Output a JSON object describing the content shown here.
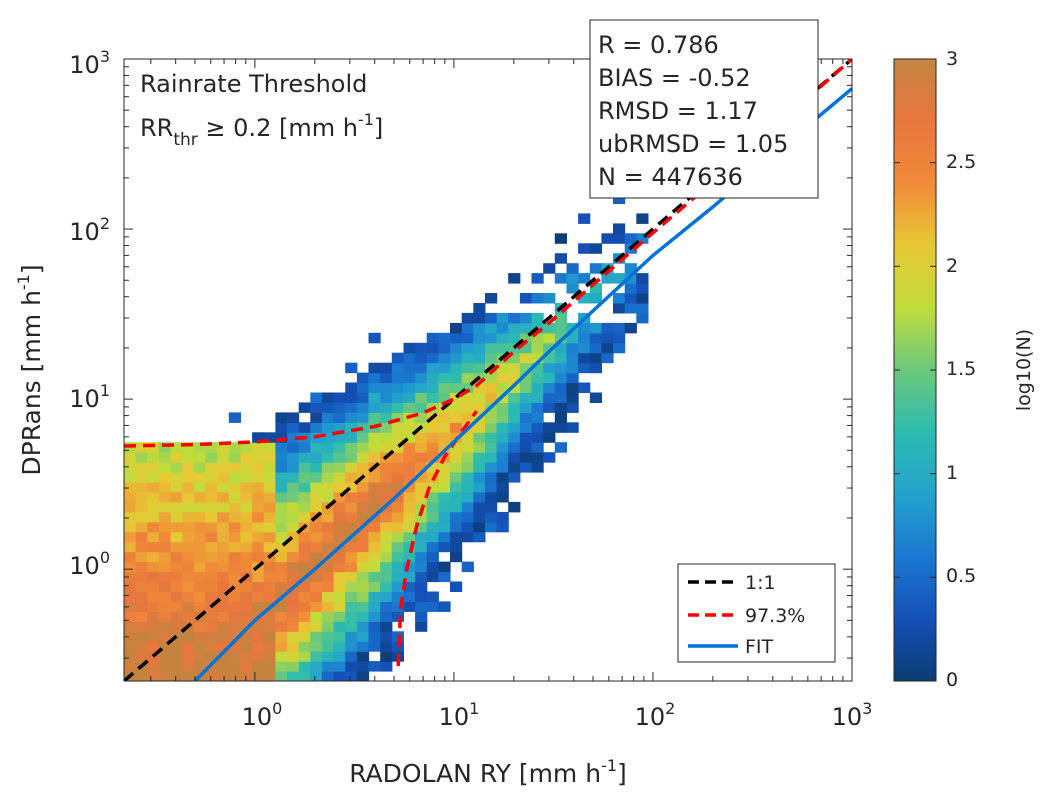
{
  "chart_data": {
    "type": "heatmap",
    "xlabel": "RADOLAN RY [mm h",
    "ylabel": "DPRans [mm h",
    "unit_exponent": "-1",
    "x_scale": "log",
    "y_scale": "log",
    "xlim": [
      0.22,
      1000
    ],
    "ylim": [
      0.22,
      1000
    ],
    "x_ticks": [
      {
        "base": "10",
        "exp": "0",
        "value": 1
      },
      {
        "base": "10",
        "exp": "1",
        "value": 10
      },
      {
        "base": "10",
        "exp": "2",
        "value": 100
      },
      {
        "base": "10",
        "exp": "3",
        "value": 1000
      }
    ],
    "y_ticks": [
      {
        "base": "10",
        "exp": "0",
        "value": 1
      },
      {
        "base": "10",
        "exp": "1",
        "value": 10
      },
      {
        "base": "10",
        "exp": "2",
        "value": 100
      },
      {
        "base": "10",
        "exp": "3",
        "value": 1000
      }
    ],
    "annotation": {
      "line1": "Rainrate Threshold",
      "line2_main": "RR",
      "line2_sub": "thr",
      "line2_rest": " ≥ 0.2 [mm h",
      "line2_sup": "-1",
      "line2_end": "]"
    },
    "stats": [
      "R = 0.786",
      "BIAS = -0.52",
      "RMSD = 1.17",
      "ubRMSD = 1.05",
      "N = 447636"
    ],
    "colorbar": {
      "label": "log10(N)",
      "range": [
        0,
        3
      ],
      "ticks": [
        "0",
        "0.5",
        "1",
        "1.5",
        "2",
        "2.5",
        "3"
      ]
    },
    "density_model": {
      "description": "2D histogram of log10(N) counts over log10 bins",
      "fit_slope": 1.12,
      "fit_intercept": -0.3,
      "ridge_spread": 0.28,
      "peak_log10N": 3.0,
      "bin_width_log10": 0.0585
    },
    "series": [
      {
        "name": "1:1",
        "color": "#000000",
        "dash": true,
        "x": [
          0.22,
          1000
        ],
        "y": [
          0.22,
          1000
        ]
      },
      {
        "name": "97.3%",
        "color": "#ff0000",
        "dash": true,
        "x": [
          0.22,
          0.5,
          1,
          2,
          4,
          7,
          10,
          13,
          20,
          30,
          50,
          100,
          200,
          400,
          1000
        ],
        "y": [
          5.3,
          5.4,
          5.6,
          6.0,
          6.9,
          8.3,
          10,
          12,
          19,
          28,
          47,
          95,
          190,
          390,
          1000
        ]
      },
      {
        "name": "97.3%-lower",
        "color": "#ff0000",
        "dash": true,
        "x": [
          5.25,
          5.4,
          5.8,
          6.5,
          7.5,
          9,
          11,
          13
        ],
        "y": [
          0.27,
          0.6,
          1.0,
          1.8,
          3.0,
          4.6,
          6.5,
          8.5
        ]
      },
      {
        "name": "FIT",
        "color": "#0072d9",
        "dash": false,
        "x": [
          0.5,
          1,
          2,
          5,
          10,
          20,
          30,
          50,
          100,
          200,
          500,
          1000
        ],
        "y": [
          0.22,
          0.5,
          1.0,
          2.6,
          5.6,
          12,
          19,
          33,
          70,
          135,
          340,
          670
        ]
      }
    ],
    "legend": {
      "position": "bottom-right",
      "entries": [
        "1:1",
        "97.3%",
        "FIT"
      ]
    }
  }
}
